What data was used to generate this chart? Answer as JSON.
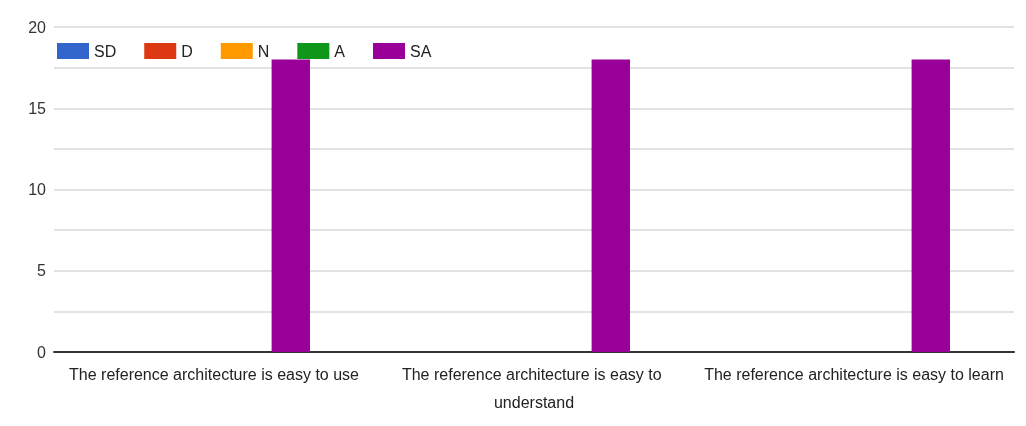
{
  "chart_data": {
    "type": "bar",
    "categories": [
      "The reference architecture is easy to use",
      "The reference architecture is easy to understand",
      "The reference architecture is easy to learn"
    ],
    "series": [
      {
        "name": "SD",
        "color": "#3366cc",
        "values": [
          0,
          0,
          0
        ]
      },
      {
        "name": "D",
        "color": "#dc3912",
        "values": [
          0,
          0,
          0
        ]
      },
      {
        "name": "N",
        "color": "#ff9900",
        "values": [
          0,
          0,
          0
        ]
      },
      {
        "name": "A",
        "color": "#109618",
        "values": [
          0,
          0,
          0
        ]
      },
      {
        "name": "SA",
        "color": "#990099",
        "values": [
          18,
          18,
          18
        ]
      }
    ],
    "ylim": [
      0,
      20
    ],
    "yticks": [
      0,
      {
        "value": 2.5,
        "label": null
      },
      5,
      {
        "value": 7.5,
        "label": null
      },
      10,
      {
        "value": 12.5,
        "label": null
      },
      15,
      {
        "value": 17.5,
        "label": null
      },
      20
    ],
    "grid": "y",
    "legend": "top left"
  }
}
